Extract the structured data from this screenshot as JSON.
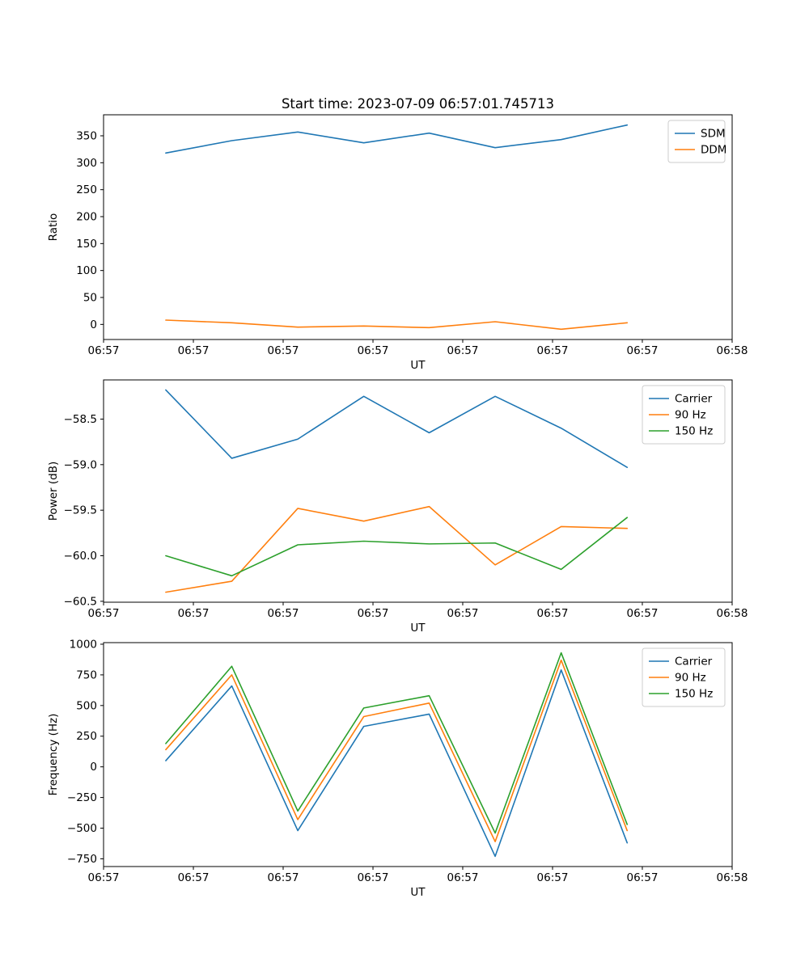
{
  "figure": {
    "background": "#ffffff"
  },
  "colors": {
    "blue": "#1f77b4",
    "orange": "#ff7f0e",
    "green": "#2ca02c"
  },
  "chart_data": [
    {
      "type": "line",
      "title": "Start time: 2023-07-09 06:57:01.745713",
      "xlabel": "UT",
      "ylabel": "Ratio",
      "grid": false,
      "legend_position": "upper right",
      "x_unit": "axis-fraction",
      "xlim": [
        0,
        1
      ],
      "x_ticks": [
        0,
        0.1429,
        0.2857,
        0.4286,
        0.5714,
        0.7143,
        0.8571,
        1
      ],
      "x_tick_labels": [
        "06:57",
        "06:57",
        "06:57",
        "06:57",
        "06:57",
        "06:57",
        "06:57",
        "06:58"
      ],
      "ylim": [
        -28,
        389
      ],
      "y_ticks": [
        0,
        50,
        100,
        150,
        200,
        250,
        300,
        350
      ],
      "y_tick_labels": [
        "0",
        "50",
        "100",
        "150",
        "200",
        "250",
        "300",
        "350"
      ],
      "x": [
        0.099,
        0.204,
        0.309,
        0.414,
        0.518,
        0.623,
        0.728,
        0.833
      ],
      "series": [
        {
          "name": "SDM",
          "color": "#1f77b4",
          "values": [
            318,
            341,
            357,
            337,
            355,
            328,
            343,
            370
          ]
        },
        {
          "name": "DDM",
          "color": "#ff7f0e",
          "values": [
            8,
            3,
            -5,
            -3,
            -6,
            5,
            -9,
            3
          ]
        }
      ]
    },
    {
      "type": "line",
      "title": "",
      "xlabel": "UT",
      "ylabel": "Power (dB)",
      "grid": false,
      "legend_position": "upper right",
      "x_unit": "axis-fraction",
      "xlim": [
        0,
        1
      ],
      "x_ticks": [
        0,
        0.1429,
        0.2857,
        0.4286,
        0.5714,
        0.7143,
        0.8571,
        1
      ],
      "x_tick_labels": [
        "06:57",
        "06:57",
        "06:57",
        "06:57",
        "06:57",
        "06:57",
        "06:57",
        "06:58"
      ],
      "ylim": [
        -60.51,
        -58.07
      ],
      "y_ticks": [
        -58.5,
        -59.0,
        -59.5,
        -60.0,
        -60.5
      ],
      "y_tick_labels": [
        "−58.5",
        "−59.0",
        "−59.5",
        "−60.0",
        "−60.5"
      ],
      "x": [
        0.099,
        0.204,
        0.309,
        0.414,
        0.518,
        0.623,
        0.728,
        0.833
      ],
      "series": [
        {
          "name": "Carrier",
          "color": "#1f77b4",
          "values": [
            -58.18,
            -58.93,
            -58.72,
            -58.25,
            -58.65,
            -58.25,
            -58.6,
            -59.03
          ]
        },
        {
          "name": "90 Hz",
          "color": "#ff7f0e",
          "values": [
            -60.4,
            -60.28,
            -59.48,
            -59.62,
            -59.46,
            -60.1,
            -59.68,
            -59.7
          ]
        },
        {
          "name": "150 Hz",
          "color": "#2ca02c",
          "values": [
            -60.0,
            -60.22,
            -59.88,
            -59.84,
            -59.87,
            -59.86,
            -60.15,
            -59.58
          ]
        }
      ]
    },
    {
      "type": "line",
      "title": "",
      "xlabel": "UT",
      "ylabel": "Frequency (Hz)",
      "grid": false,
      "legend_position": "upper right",
      "x_unit": "axis-fraction",
      "xlim": [
        0,
        1
      ],
      "x_ticks": [
        0,
        0.1429,
        0.2857,
        0.4286,
        0.5714,
        0.7143,
        0.8571,
        1
      ],
      "x_tick_labels": [
        "06:57",
        "06:57",
        "06:57",
        "06:57",
        "06:57",
        "06:57",
        "06:57",
        "06:58"
      ],
      "ylim": [
        -813,
        1013
      ],
      "y_ticks": [
        -750,
        -500,
        -250,
        0,
        250,
        500,
        750,
        1000
      ],
      "y_tick_labels": [
        "−750",
        "−500",
        "−250",
        "0",
        "250",
        "500",
        "750",
        "1000"
      ],
      "x": [
        0.099,
        0.204,
        0.309,
        0.414,
        0.518,
        0.623,
        0.728,
        0.833
      ],
      "series": [
        {
          "name": "Carrier",
          "color": "#1f77b4",
          "values": [
            50,
            660,
            -520,
            330,
            430,
            -730,
            790,
            -620
          ]
        },
        {
          "name": "90 Hz",
          "color": "#ff7f0e",
          "values": [
            140,
            750,
            -430,
            410,
            520,
            -610,
            870,
            -520
          ]
        },
        {
          "name": "150 Hz",
          "color": "#2ca02c",
          "values": [
            190,
            820,
            -360,
            480,
            580,
            -540,
            930,
            -470
          ]
        }
      ]
    }
  ]
}
